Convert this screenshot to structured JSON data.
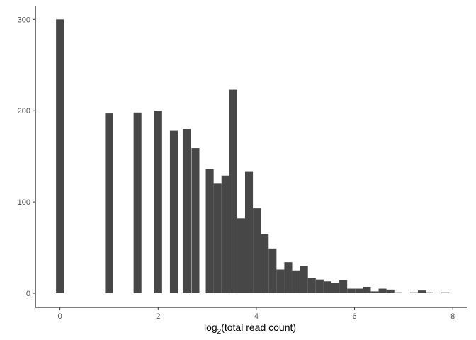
{
  "chart_data": {
    "type": "bar",
    "title": "",
    "xlabel_main": "log",
    "xlabel_sub": "2",
    "xlabel_rest": "(total read count)",
    "ylabel": "",
    "bin_width": 0.16,
    "xlim": [
      -0.5,
      8.3
    ],
    "ylim": [
      0,
      315
    ],
    "x_ticks": [
      0,
      2,
      4,
      6,
      8
    ],
    "y_ticks": [
      0,
      100,
      200,
      300
    ],
    "bar_color": "#474747",
    "grid": false,
    "bins": [
      {
        "x": 0.0,
        "y": 300
      },
      {
        "x": 1.0,
        "y": 197
      },
      {
        "x": 1.58,
        "y": 198
      },
      {
        "x": 2.0,
        "y": 200
      },
      {
        "x": 2.32,
        "y": 178
      },
      {
        "x": 2.58,
        "y": 180
      },
      {
        "x": 2.76,
        "y": 159
      },
      {
        "x": 3.05,
        "y": 136
      },
      {
        "x": 3.21,
        "y": 120
      },
      {
        "x": 3.37,
        "y": 129
      },
      {
        "x": 3.53,
        "y": 223
      },
      {
        "x": 3.69,
        "y": 82
      },
      {
        "x": 3.85,
        "y": 133
      },
      {
        "x": 4.01,
        "y": 93
      },
      {
        "x": 4.17,
        "y": 65
      },
      {
        "x": 4.33,
        "y": 49
      },
      {
        "x": 4.49,
        "y": 26
      },
      {
        "x": 4.65,
        "y": 34
      },
      {
        "x": 4.81,
        "y": 25
      },
      {
        "x": 4.97,
        "y": 30
      },
      {
        "x": 5.13,
        "y": 17
      },
      {
        "x": 5.29,
        "y": 15
      },
      {
        "x": 5.45,
        "y": 13
      },
      {
        "x": 5.61,
        "y": 11
      },
      {
        "x": 5.77,
        "y": 14
      },
      {
        "x": 5.93,
        "y": 5
      },
      {
        "x": 6.09,
        "y": 5
      },
      {
        "x": 6.25,
        "y": 7
      },
      {
        "x": 6.41,
        "y": 2
      },
      {
        "x": 6.57,
        "y": 5
      },
      {
        "x": 6.73,
        "y": 4
      },
      {
        "x": 6.89,
        "y": 1
      },
      {
        "x": 7.21,
        "y": 1
      },
      {
        "x": 7.37,
        "y": 3
      },
      {
        "x": 7.53,
        "y": 1
      },
      {
        "x": 7.85,
        "y": 1
      }
    ]
  }
}
